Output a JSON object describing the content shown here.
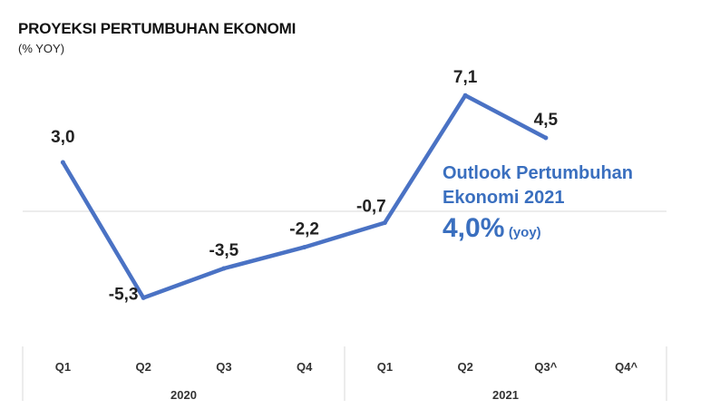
{
  "title": "PROYEKSI PERTUMBUHAN EKONOMI",
  "subtitle": "(% YOY)",
  "outlook": {
    "line1": "Outlook Pertumbuhan",
    "line2": "Ekonomi 2021",
    "value": "4,0%",
    "unit": "(yoy)"
  },
  "colors": {
    "line": "#4a72c4",
    "outlook": "#3a6fbf",
    "grid": "#d9d9d9"
  },
  "chart_data": {
    "type": "line",
    "categories": [
      "Q1",
      "Q2",
      "Q3",
      "Q4",
      "Q1",
      "Q2",
      "Q3^",
      "Q4^"
    ],
    "groups": [
      {
        "label": "2020",
        "span": [
          0,
          3
        ]
      },
      {
        "label": "2021",
        "span": [
          4,
          7
        ]
      }
    ],
    "series": [
      {
        "values": [
          3.0,
          -5.3,
          -3.5,
          -2.2,
          -0.7,
          7.1,
          4.5,
          null
        ]
      }
    ],
    "data_labels": [
      "3,0",
      "-5,3",
      "-3,5",
      "-2,2",
      "-0,7",
      "7,1",
      "4,5",
      ""
    ],
    "ylim": [
      -6,
      8
    ],
    "zero_line": true,
    "legend": "none"
  }
}
